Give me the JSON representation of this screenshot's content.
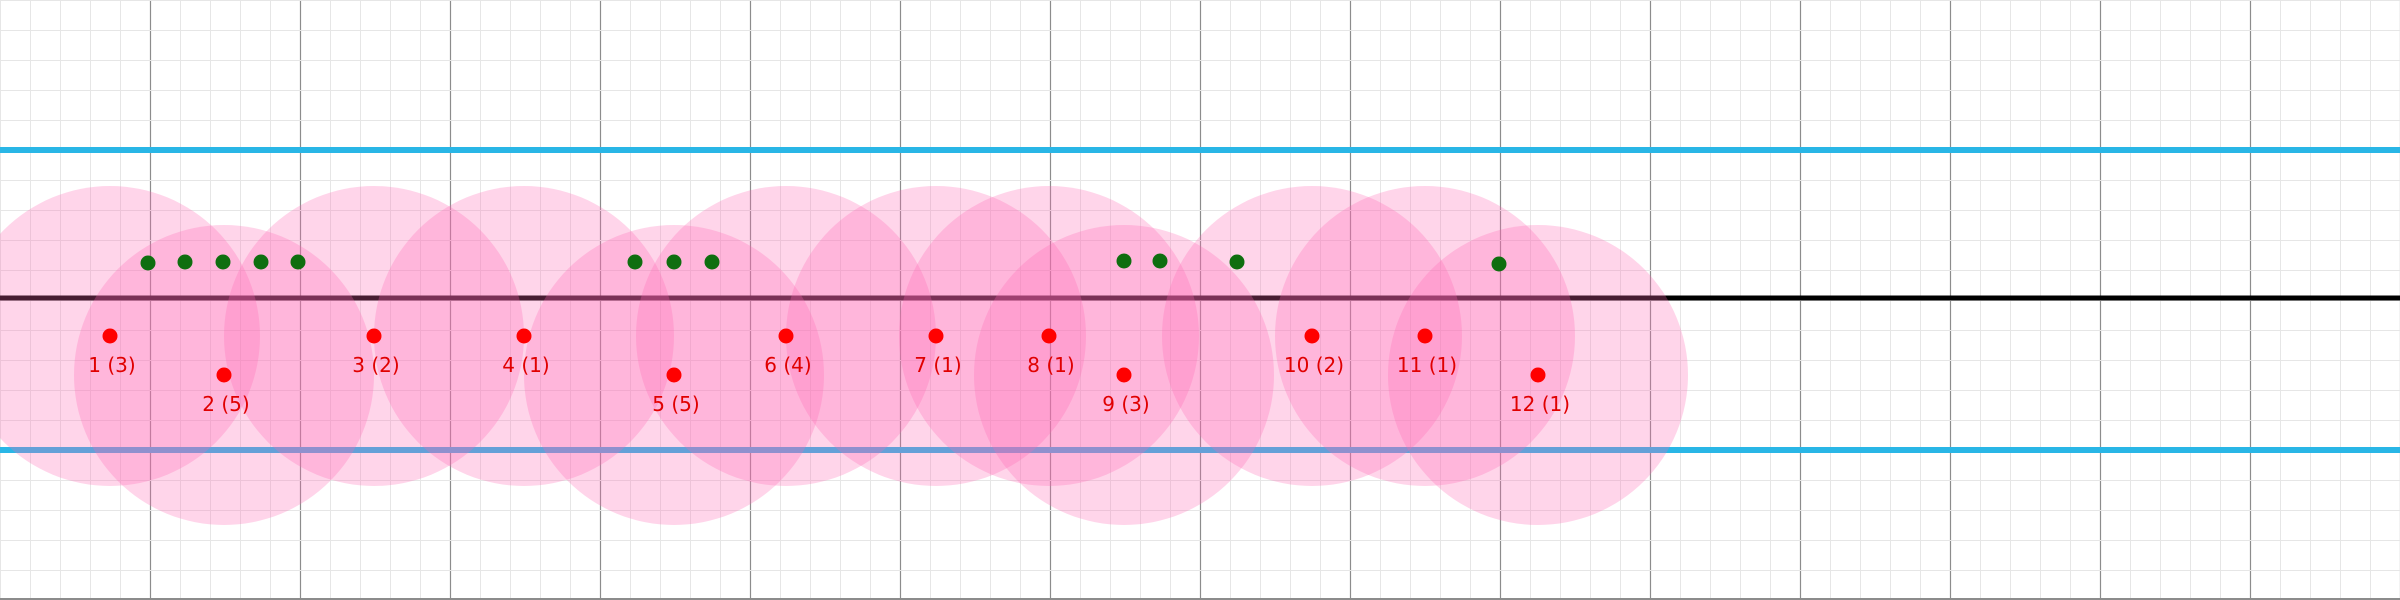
{
  "grid": {
    "minor_color": "#e6e6e6",
    "major_color": "#8c8c8c"
  },
  "bands": {
    "color": "#29b6e6",
    "center_line_color": "#000000"
  },
  "circle_fill": "#ff69b4",
  "red_point_color": "#ff0000",
  "label_color": "#e00000",
  "green_point_color": "#0f6e0f",
  "points": [
    {
      "label": "1 (3)",
      "row": "upper"
    },
    {
      "label": "2 (5)",
      "row": "lower"
    },
    {
      "label": "3 (2)",
      "row": "upper"
    },
    {
      "label": "4 (1)",
      "row": "upper"
    },
    {
      "label": "5 (5)",
      "row": "lower"
    },
    {
      "label": "6 (4)",
      "row": "upper"
    },
    {
      "label": "7 (1)",
      "row": "upper"
    },
    {
      "label": "8 (1)",
      "row": "upper"
    },
    {
      "label": "9 (3)",
      "row": "lower"
    },
    {
      "label": "10 (2)",
      "row": "upper"
    },
    {
      "label": "11 (1)",
      "row": "upper"
    },
    {
      "label": "12 (1)",
      "row": "lower"
    }
  ],
  "green_point_count": 12
}
